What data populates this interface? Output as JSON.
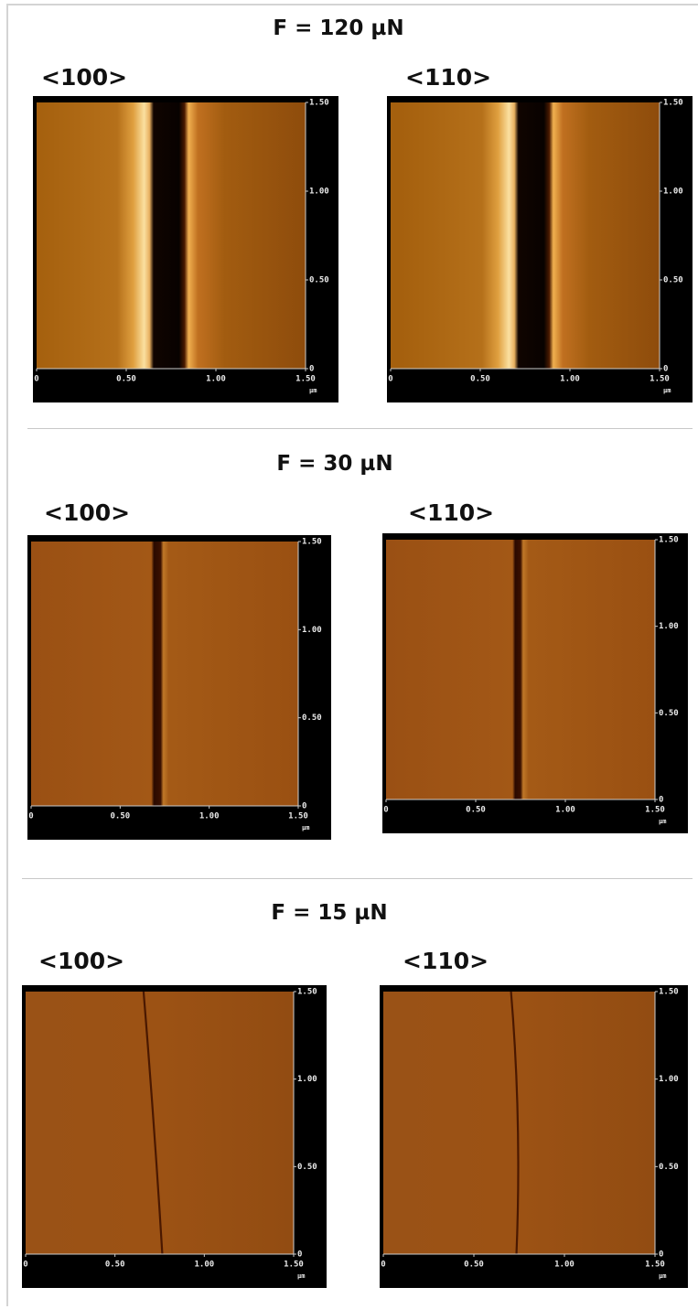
{
  "sections": [
    {
      "title": "F = 120 µN",
      "panels": [
        {
          "label": "<100>",
          "xticks": [
            "0",
            "0.50",
            "1.00",
            "1.50"
          ],
          "yticks": [
            "1.50",
            "1.00",
            "0.50",
            "0"
          ],
          "unit": "µm"
        },
        {
          "label": "<110>",
          "xticks": [
            "0",
            "0.50",
            "1.00",
            "1.50"
          ],
          "yticks": [
            "1.50",
            "1.00",
            "0.50",
            "0"
          ],
          "unit": "µm"
        }
      ]
    },
    {
      "title": "F = 30 µN",
      "panels": [
        {
          "label": "<100>",
          "xticks": [
            "0",
            "0.50",
            "1.00",
            "1.50"
          ],
          "yticks": [
            "1.50",
            "1.00",
            "0.50",
            "0"
          ],
          "unit": "µm"
        },
        {
          "label": "<110>",
          "xticks": [
            "0",
            "0.50",
            "1.00",
            "1.50"
          ],
          "yticks": [
            "1.50",
            "1.00",
            "0.50",
            "0"
          ],
          "unit": "µm"
        }
      ]
    },
    {
      "title": "F = 15 µN",
      "panels": [
        {
          "label": "<100>",
          "xticks": [
            "0",
            "0.50",
            "1.00",
            "1.50"
          ],
          "yticks": [
            "1.50",
            "1.00",
            "0.50",
            "0"
          ],
          "unit": "µm"
        },
        {
          "label": "<110>",
          "xticks": [
            "0",
            "0.50",
            "1.00",
            "1.50"
          ],
          "yticks": [
            "1.50",
            "1.00",
            "0.50",
            "0"
          ],
          "unit": "µm"
        }
      ]
    }
  ]
}
